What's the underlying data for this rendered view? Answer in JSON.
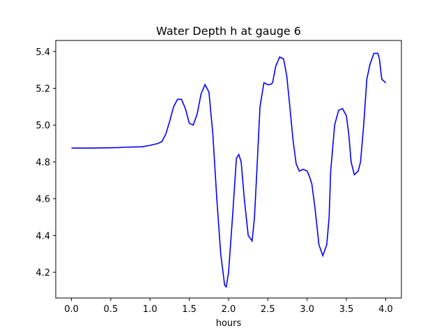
{
  "chart_data": {
    "type": "line",
    "title": "Water Depth h at gauge 6",
    "xlabel": "hours",
    "ylabel": "",
    "xlim": [
      -0.2,
      4.2
    ],
    "ylim": [
      4.06,
      5.46
    ],
    "xticks": [
      0.0,
      0.5,
      1.0,
      1.5,
      2.0,
      2.5,
      3.0,
      3.5,
      4.0
    ],
    "xtick_labels": [
      "0.0",
      "0.5",
      "1.0",
      "1.5",
      "2.0",
      "2.5",
      "3.0",
      "3.5",
      "4.0"
    ],
    "yticks": [
      4.2,
      4.4,
      4.6,
      4.8,
      5.0,
      5.2,
      5.4
    ],
    "ytick_labels": [
      "4.2",
      "4.4",
      "4.6",
      "4.8",
      "5.0",
      "5.2",
      "5.4"
    ],
    "grid": false,
    "legend": "none",
    "series": [
      {
        "color": "#0000ff",
        "x": [
          0.0,
          0.2,
          0.4,
          0.5,
          0.6,
          0.7,
          0.8,
          0.9,
          1.0,
          1.1,
          1.15,
          1.2,
          1.25,
          1.3,
          1.35,
          1.4,
          1.45,
          1.5,
          1.55,
          1.6,
          1.65,
          1.7,
          1.75,
          1.8,
          1.85,
          1.9,
          1.95,
          1.97,
          2.0,
          2.05,
          2.1,
          2.13,
          2.16,
          2.2,
          2.25,
          2.3,
          2.33,
          2.36,
          2.4,
          2.45,
          2.5,
          2.53,
          2.56,
          2.6,
          2.65,
          2.7,
          2.74,
          2.78,
          2.82,
          2.86,
          2.9,
          2.95,
          3.0,
          3.03,
          3.06,
          3.1,
          3.15,
          3.2,
          3.25,
          3.28,
          3.3,
          3.35,
          3.4,
          3.45,
          3.5,
          3.53,
          3.56,
          3.6,
          3.65,
          3.68,
          3.72,
          3.76,
          3.8,
          3.85,
          3.9,
          3.92,
          3.95,
          4.0
        ],
        "y": [
          4.875,
          4.875,
          4.876,
          4.877,
          4.878,
          4.88,
          4.881,
          4.882,
          4.89,
          4.9,
          4.91,
          4.95,
          5.02,
          5.1,
          5.14,
          5.14,
          5.09,
          5.01,
          5.0,
          5.06,
          5.17,
          5.22,
          5.18,
          4.95,
          4.6,
          4.3,
          4.13,
          4.12,
          4.2,
          4.5,
          4.82,
          4.84,
          4.8,
          4.6,
          4.4,
          4.37,
          4.5,
          4.75,
          5.1,
          5.23,
          5.22,
          5.22,
          5.23,
          5.32,
          5.37,
          5.36,
          5.27,
          5.1,
          4.92,
          4.79,
          4.75,
          4.76,
          4.75,
          4.72,
          4.68,
          4.55,
          4.35,
          4.29,
          4.35,
          4.5,
          4.75,
          5.0,
          5.08,
          5.09,
          5.05,
          4.95,
          4.8,
          4.73,
          4.75,
          4.8,
          5.0,
          5.25,
          5.33,
          5.39,
          5.39,
          5.36,
          5.25,
          5.23
        ]
      }
    ]
  }
}
